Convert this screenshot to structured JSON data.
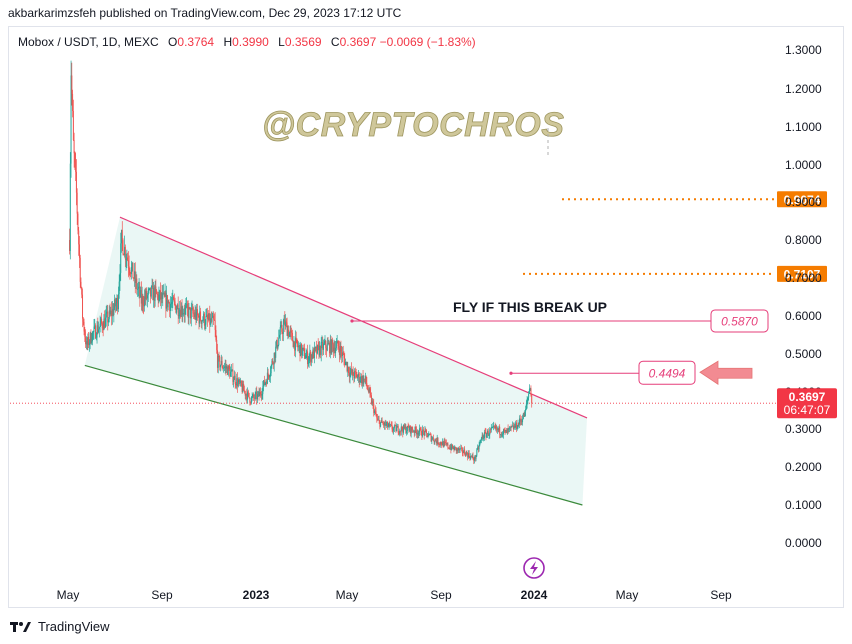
{
  "publisher": "akbarkarimzsfeh published on TradingView.com, Dec 29, 2023 17:12 UTC",
  "legend": {
    "symbol": "Mobox / USDT, 1D, MEXC",
    "open_label": "O",
    "open": "0.3764",
    "high_label": "H",
    "high": "0.3990",
    "low_label": "L",
    "low": "0.3569",
    "close_label": "C",
    "close": "0.3697",
    "change": "−0.0069 (−1.83%)"
  },
  "watermark": "@CRYPTOCHROS",
  "annotation": "FLY IF THIS BREAK UP",
  "footer": {
    "brand": "TradingView"
  },
  "colors": {
    "up": "#26a69a",
    "down": "#ef5350",
    "channel_fill": "#e6f6f3",
    "upper_line": "#e63e7a",
    "lower_line": "#3b8a3b",
    "orange": "#f57c00",
    "price_red": "#f23645"
  },
  "chart_data": {
    "type": "candlestick",
    "y_scale": "log",
    "y_ticks": [
      "1.3000",
      "1.2000",
      "1.1000",
      "1.0000",
      "0.9000",
      "0.8000",
      "0.7000",
      "0.6000",
      "0.5000",
      "0.4000",
      "0.3000",
      "0.2000",
      "0.1000",
      "0.0000"
    ],
    "y_range": [
      0.0,
      1.3
    ],
    "x_ticks": [
      "May",
      "Sep",
      "2023",
      "May",
      "Sep",
      "2024",
      "May",
      "Sep"
    ],
    "x_tick_dates": [
      "2022-05-01",
      "2022-09-01",
      "2023-01-01",
      "2023-05-01",
      "2023-09-01",
      "2024-01-01",
      "2024-05-01",
      "2024-09-01"
    ],
    "x_range": [
      "2022-04-10",
      "2024-10-10"
    ],
    "price_levels": [
      {
        "label": "0.9074",
        "value": 0.9074,
        "style": "dotted",
        "color": "#f57c00",
        "badge": "orange"
      },
      {
        "label": "0.7107",
        "value": 0.7107,
        "style": "dotted",
        "color": "#f57c00",
        "badge": "orange"
      },
      {
        "label": "0.5870",
        "value": 0.587,
        "style": "solid",
        "color": "#e63e7a",
        "badge": "outline"
      },
      {
        "label": "0.4494",
        "value": 0.4494,
        "style": "solid",
        "color": "#e63e7a",
        "badge": "outline"
      }
    ],
    "last_price": {
      "label": "0.3697",
      "value": 0.3697,
      "countdown": "06:47:07"
    },
    "channel": {
      "upper": [
        [
          "2022-07-08",
          0.86
        ],
        [
          "2024-03-10",
          0.33
        ]
      ],
      "lower": [
        [
          "2022-05-23",
          0.47
        ],
        [
          "2024-03-04",
          0.1
        ]
      ]
    },
    "price_path": [
      [
        "2022-05-03",
        0.8
      ],
      [
        "2022-05-05",
        1.25
      ],
      [
        "2022-05-08",
        1.05
      ],
      [
        "2022-05-12",
        0.92
      ],
      [
        "2022-05-16",
        0.75
      ],
      [
        "2022-05-20",
        0.6
      ],
      [
        "2022-05-25",
        0.52
      ],
      [
        "2022-06-01",
        0.55
      ],
      [
        "2022-06-10",
        0.57
      ],
      [
        "2022-06-25",
        0.6
      ],
      [
        "2022-07-05",
        0.64
      ],
      [
        "2022-07-10",
        0.8
      ],
      [
        "2022-07-20",
        0.74
      ],
      [
        "2022-08-05",
        0.64
      ],
      [
        "2022-08-20",
        0.66
      ],
      [
        "2022-09-05",
        0.64
      ],
      [
        "2022-09-25",
        0.62
      ],
      [
        "2022-10-15",
        0.6
      ],
      [
        "2022-11-08",
        0.58
      ],
      [
        "2022-11-12",
        0.48
      ],
      [
        "2022-11-25",
        0.46
      ],
      [
        "2022-12-10",
        0.42
      ],
      [
        "2022-12-25",
        0.38
      ],
      [
        "2023-01-05",
        0.39
      ],
      [
        "2023-01-20",
        0.46
      ],
      [
        "2023-02-01",
        0.55
      ],
      [
        "2023-02-08",
        0.58
      ],
      [
        "2023-02-20",
        0.53
      ],
      [
        "2023-03-10",
        0.49
      ],
      [
        "2023-04-01",
        0.52
      ],
      [
        "2023-04-20",
        0.52
      ],
      [
        "2023-05-05",
        0.45
      ],
      [
        "2023-05-25",
        0.43
      ],
      [
        "2023-06-10",
        0.32
      ],
      [
        "2023-07-01",
        0.3
      ],
      [
        "2023-07-20",
        0.3
      ],
      [
        "2023-08-10",
        0.29
      ],
      [
        "2023-08-25",
        0.27
      ],
      [
        "2023-09-15",
        0.25
      ],
      [
        "2023-10-01",
        0.24
      ],
      [
        "2023-10-15",
        0.22
      ],
      [
        "2023-10-25",
        0.28
      ],
      [
        "2023-11-10",
        0.3
      ],
      [
        "2023-11-25",
        0.29
      ],
      [
        "2023-12-10",
        0.31
      ],
      [
        "2023-12-20",
        0.34
      ],
      [
        "2023-12-27",
        0.42
      ],
      [
        "2023-12-29",
        0.37
      ]
    ]
  }
}
